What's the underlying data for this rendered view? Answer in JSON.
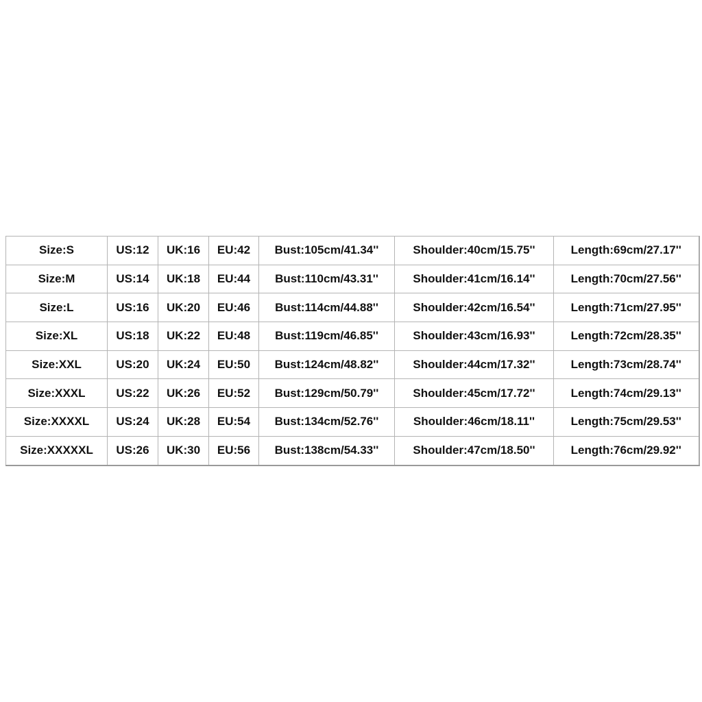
{
  "size_chart": {
    "rows": [
      [
        "Size:S",
        "US:12",
        "UK:16",
        "EU:42",
        "Bust:105cm/41.34''",
        "Shoulder:40cm/15.75''",
        "Length:69cm/27.17''"
      ],
      [
        "Size:M",
        "US:14",
        "UK:18",
        "EU:44",
        "Bust:110cm/43.31''",
        "Shoulder:41cm/16.14''",
        "Length:70cm/27.56''"
      ],
      [
        "Size:L",
        "US:16",
        "UK:20",
        "EU:46",
        "Bust:114cm/44.88''",
        "Shoulder:42cm/16.54''",
        "Length:71cm/27.95''"
      ],
      [
        "Size:XL",
        "US:18",
        "UK:22",
        "EU:48",
        "Bust:119cm/46.85''",
        "Shoulder:43cm/16.93''",
        "Length:72cm/28.35''"
      ],
      [
        "Size:XXL",
        "US:20",
        "UK:24",
        "EU:50",
        "Bust:124cm/48.82''",
        "Shoulder:44cm/17.32''",
        "Length:73cm/28.74''"
      ],
      [
        "Size:XXXL",
        "US:22",
        "UK:26",
        "EU:52",
        "Bust:129cm/50.79''",
        "Shoulder:45cm/17.72''",
        "Length:74cm/29.13''"
      ],
      [
        "Size:XXXXL",
        "US:24",
        "UK:28",
        "EU:54",
        "Bust:134cm/52.76''",
        "Shoulder:46cm/18.11''",
        "Length:75cm/29.53''"
      ],
      [
        "Size:XXXXXL",
        "US:26",
        "UK:30",
        "EU:56",
        "Bust:138cm/54.33''",
        "Shoulder:47cm/18.50''",
        "Length:76cm/29.92''"
      ]
    ]
  }
}
